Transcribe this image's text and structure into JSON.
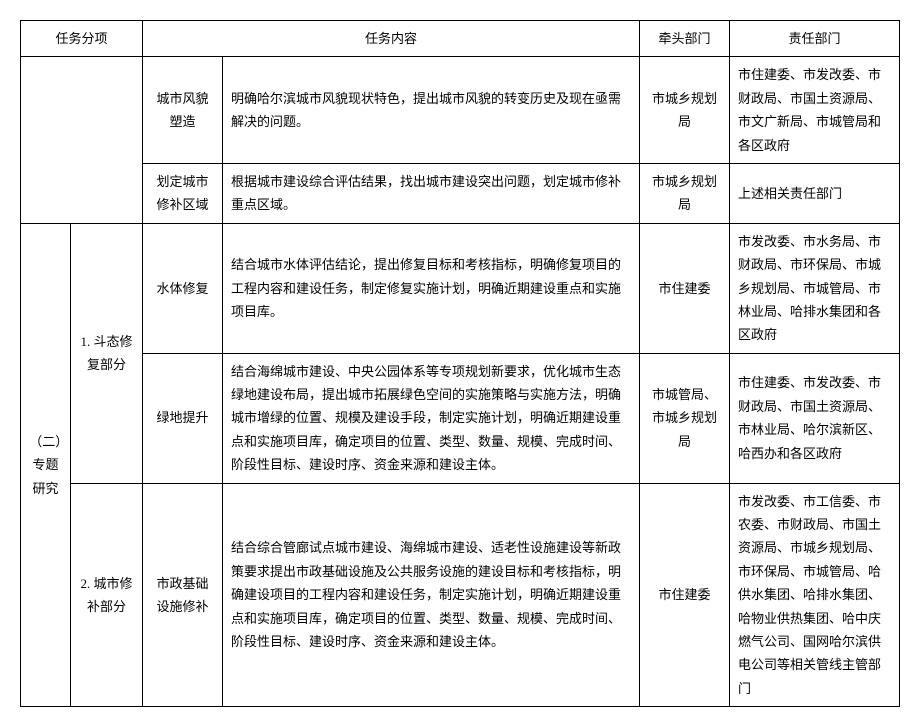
{
  "header": {
    "task_item": "任务分项",
    "task_content": "任务内容",
    "lead_dept": "牵头部门",
    "resp_dept": "责任部门"
  },
  "section": {
    "index_label": "（二）专题研究"
  },
  "rows": [
    {
      "sub": "城市风貌塑造",
      "content": "明确哈尔滨城市风貌现状特色，提出城市风貌的转变历史及现在亟需解决的问题。",
      "lead": "市城乡规划局",
      "resp": "市住建委、市发改委、市财政局、市国土资源局、市文广新局、市城管局和各区政府"
    },
    {
      "sub": "划定城市修补区域",
      "content": "根据城市建设综合评估结果，找出城市建设突出问题，划定城市修补重点区域。",
      "lead": "市城乡规划局",
      "resp": "上述相关责任部门"
    }
  ],
  "group1": {
    "num": "1. 斗态修复部分",
    "r1": {
      "sub": "水体修复",
      "content": "结合城市水体评估结论，提出修复目标和考核指标，明确修复项目的工程内容和建设任务，制定修复实施计划，明确近期建设重点和实施项目库。",
      "lead": "市住建委",
      "resp": "市发改委、市水务局、市财政局、市环保局、市城乡规划局、市城管局、市林业局、哈排水集团和各区政府"
    },
    "r2": {
      "sub": "绿地提升",
      "content": "结合海绵城市建设、中央公园体系等专项规划新要求，优化城市生态绿地建设布局，提出城市拓展绿色空间的实施策略与实施方法，明确城市增绿的位置、规模及建设手段，制定实施计划，明确近期建设重点和实施项目库，确定项目的位置、类型、数量、规模、完成时间、阶段性目标、建设时序、资金来源和建设主体。",
      "lead": "市城管局、市城乡规划局",
      "resp": "市住建委、市发改委、市财政局、市国土资源局、市林业局、哈尔滨新区、哈西办和各区政府"
    }
  },
  "group2": {
    "num": "2. 城市修补部分",
    "r1": {
      "sub": "市政基础设施修补",
      "content": "结合综合管廊试点城市建设、海绵城市建设、适老性设施建设等新政策要求提出市政基础设施及公共服务设施的建设目标和考核指标，明确建设项目的工程内容和建设任务，制定实施计划，明确近期建设重点和实施项目库，确定项目的位置、类型、数量、规模、完成时间、阶段性目标、建设时序、资金来源和建设主体。",
      "lead": "市住建委",
      "resp": "市发改委、市工信委、市农委、市财政局、市国土资源局、市城乡规划局、市环保局、市城管局、哈供水集团、哈排水集团、哈物业供热集团、哈中庆燃气公司、国网哈尔滨供电公司等相关管线主管部门"
    }
  }
}
